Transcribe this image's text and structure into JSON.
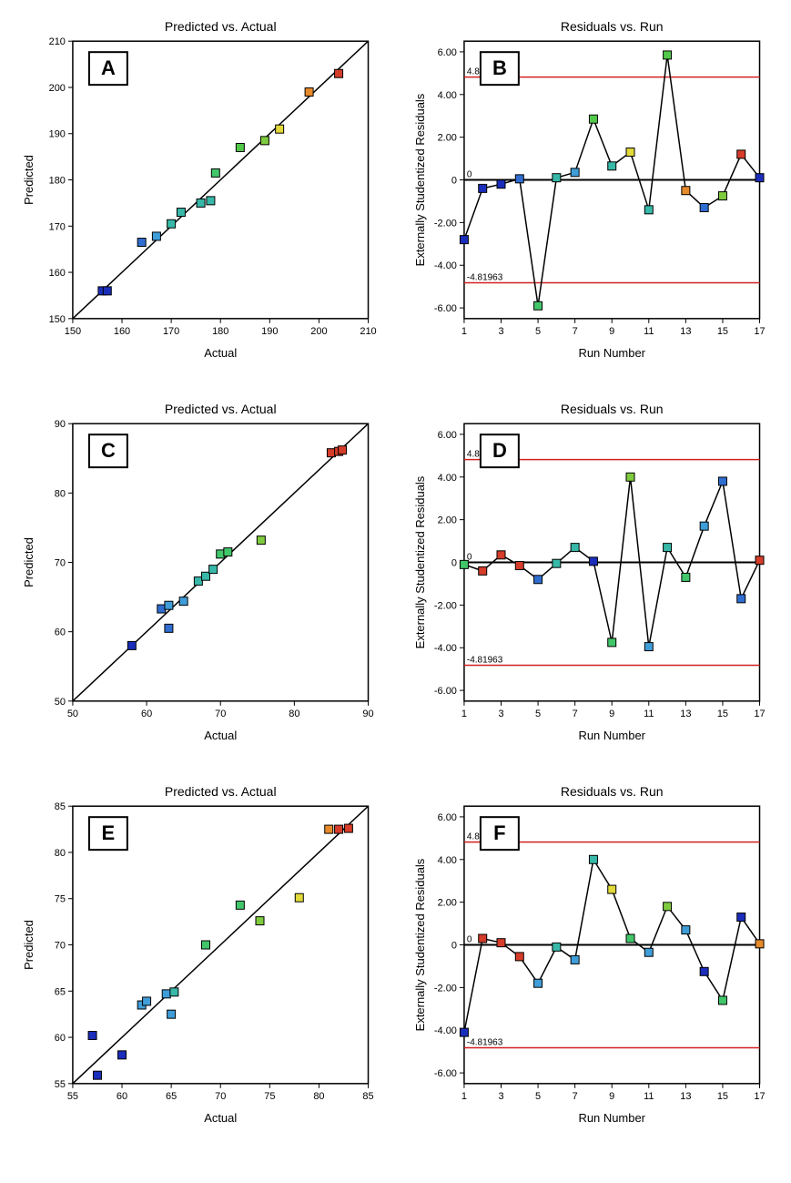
{
  "marker_size": 9,
  "marker_stroke": "#000000",
  "marker_stroke_width": 1,
  "line_color": "#000000",
  "line_width": 1.5,
  "red_line_color": "#d22020",
  "red_line_width": 1.5,
  "zero_line_color": "#000000",
  "zero_line_width": 2,
  "plot_border_color": "#000000",
  "plot_border_width": 1.5,
  "tick_color": "#000000",
  "panels": {
    "A": {
      "type": "scatter",
      "title": "Predicted vs. Actual",
      "xlabel": "Actual",
      "ylabel": "Predicted",
      "letter": "A",
      "xlim": [
        150,
        210
      ],
      "ylim": [
        150,
        210
      ],
      "xticks": [
        150,
        160,
        170,
        180,
        190,
        200,
        210
      ],
      "yticks": [
        150,
        160,
        170,
        180,
        190,
        200,
        210
      ],
      "diag_line": true,
      "points": [
        {
          "x": 156,
          "y": 156,
          "c": "#1a2dbb"
        },
        {
          "x": 157,
          "y": 156,
          "c": "#1a2dbb"
        },
        {
          "x": 164,
          "y": 166.5,
          "c": "#2f6dd0"
        },
        {
          "x": 167,
          "y": 167.8,
          "c": "#3f9dd8"
        },
        {
          "x": 170,
          "y": 170.5,
          "c": "#37b8a8"
        },
        {
          "x": 172,
          "y": 173,
          "c": "#37b8a8"
        },
        {
          "x": 176,
          "y": 175,
          "c": "#37b8a8"
        },
        {
          "x": 178,
          "y": 175.5,
          "c": "#37b8a8"
        },
        {
          "x": 179,
          "y": 181.5,
          "c": "#42c66a"
        },
        {
          "x": 184,
          "y": 187,
          "c": "#52c94a"
        },
        {
          "x": 189,
          "y": 188.5,
          "c": "#7ecb3e"
        },
        {
          "x": 192,
          "y": 191,
          "c": "#e2d93a"
        },
        {
          "x": 198,
          "y": 199,
          "c": "#e68a2a"
        },
        {
          "x": 204,
          "y": 203,
          "c": "#d53c2a"
        }
      ]
    },
    "B": {
      "type": "run",
      "title": "Residuals vs. Run",
      "xlabel": "Run Number",
      "ylabel": "Externally Studentized Residuals",
      "letter": "B",
      "xlim": [
        1,
        17
      ],
      "ylim": [
        -6.5,
        6.5
      ],
      "xticks": [
        1,
        3,
        5,
        7,
        9,
        11,
        13,
        15,
        17
      ],
      "yticks": [
        -6,
        -4,
        -2,
        0,
        2,
        4,
        6
      ],
      "ytick_labels": [
        "-6.00",
        "-4.00",
        "-2.00",
        "0",
        "2.00",
        "4.00",
        "6.00"
      ],
      "upper_limit": 4.81963,
      "lower_limit": -4.81963,
      "points": [
        {
          "x": 1,
          "y": -2.8,
          "c": "#1a2dbb"
        },
        {
          "x": 2,
          "y": -0.4,
          "c": "#1a2dbb"
        },
        {
          "x": 3,
          "y": -0.2,
          "c": "#1a2dbb"
        },
        {
          "x": 4,
          "y": 0.05,
          "c": "#2f6dd0"
        },
        {
          "x": 5,
          "y": -5.9,
          "c": "#42c66a"
        },
        {
          "x": 6,
          "y": 0.1,
          "c": "#37b8a8"
        },
        {
          "x": 7,
          "y": 0.35,
          "c": "#3f9dd8"
        },
        {
          "x": 8,
          "y": 2.85,
          "c": "#52c94a"
        },
        {
          "x": 9,
          "y": 0.65,
          "c": "#37b8a8"
        },
        {
          "x": 10,
          "y": 1.3,
          "c": "#e2d93a"
        },
        {
          "x": 11,
          "y": -1.4,
          "c": "#37b8a8"
        },
        {
          "x": 12,
          "y": 5.85,
          "c": "#52c94a"
        },
        {
          "x": 13,
          "y": -0.5,
          "c": "#e68a2a"
        },
        {
          "x": 14,
          "y": -1.3,
          "c": "#2f6dd0"
        },
        {
          "x": 15,
          "y": -0.75,
          "c": "#7ecb3e"
        },
        {
          "x": 16,
          "y": 1.2,
          "c": "#d53c2a"
        },
        {
          "x": 17,
          "y": 0.1,
          "c": "#1a2dbb"
        }
      ]
    },
    "C": {
      "type": "scatter",
      "title": "Predicted vs. Actual",
      "xlabel": "Actual",
      "ylabel": "Predicted",
      "letter": "C",
      "xlim": [
        50,
        90
      ],
      "ylim": [
        50,
        90
      ],
      "xticks": [
        50,
        60,
        70,
        80,
        90
      ],
      "yticks": [
        50,
        60,
        70,
        80,
        90
      ],
      "diag_line": true,
      "points": [
        {
          "x": 58,
          "y": 58,
          "c": "#1a2dbb"
        },
        {
          "x": 62,
          "y": 63.3,
          "c": "#2f6dd0"
        },
        {
          "x": 63,
          "y": 63.8,
          "c": "#3f9dd8"
        },
        {
          "x": 63,
          "y": 60.5,
          "c": "#2f6dd0"
        },
        {
          "x": 65,
          "y": 64.4,
          "c": "#3f9dd8"
        },
        {
          "x": 67,
          "y": 67.3,
          "c": "#37b8a8"
        },
        {
          "x": 68,
          "y": 68,
          "c": "#37b8a8"
        },
        {
          "x": 69,
          "y": 69,
          "c": "#37b8a8"
        },
        {
          "x": 70,
          "y": 71.2,
          "c": "#42c66a"
        },
        {
          "x": 71,
          "y": 71.5,
          "c": "#42c66a"
        },
        {
          "x": 75.5,
          "y": 73.2,
          "c": "#7ecb3e"
        },
        {
          "x": 85,
          "y": 85.8,
          "c": "#d53c2a"
        },
        {
          "x": 86,
          "y": 86,
          "c": "#d53c2a"
        },
        {
          "x": 86.5,
          "y": 86.2,
          "c": "#d53c2a"
        }
      ]
    },
    "D": {
      "type": "run",
      "title": "Residuals vs. Run",
      "xlabel": "Run Number",
      "ylabel": "Externally Studentized Residuals",
      "letter": "D",
      "xlim": [
        1,
        17
      ],
      "ylim": [
        -6.5,
        6.5
      ],
      "xticks": [
        1,
        3,
        5,
        7,
        9,
        11,
        13,
        15,
        17
      ],
      "yticks": [
        -6,
        -4,
        -2,
        0,
        2,
        4,
        6
      ],
      "ytick_labels": [
        "-6.00",
        "-4.00",
        "-2.00",
        "0",
        "2.00",
        "4.00",
        "6.00"
      ],
      "upper_limit": 4.81963,
      "lower_limit": -4.81963,
      "points": [
        {
          "x": 1,
          "y": -0.1,
          "c": "#42c66a"
        },
        {
          "x": 2,
          "y": -0.4,
          "c": "#d53c2a"
        },
        {
          "x": 3,
          "y": 0.35,
          "c": "#d53c2a"
        },
        {
          "x": 4,
          "y": -0.15,
          "c": "#d53c2a"
        },
        {
          "x": 5,
          "y": -0.8,
          "c": "#2f6dd0"
        },
        {
          "x": 6,
          "y": -0.05,
          "c": "#37b8a8"
        },
        {
          "x": 7,
          "y": 0.7,
          "c": "#37b8a8"
        },
        {
          "x": 8,
          "y": 0.05,
          "c": "#1a2dbb"
        },
        {
          "x": 9,
          "y": -3.75,
          "c": "#42c66a"
        },
        {
          "x": 10,
          "y": 4.0,
          "c": "#7ecb3e"
        },
        {
          "x": 11,
          "y": -3.95,
          "c": "#3f9dd8"
        },
        {
          "x": 12,
          "y": 0.7,
          "c": "#37b8a8"
        },
        {
          "x": 13,
          "y": -0.7,
          "c": "#42c66a"
        },
        {
          "x": 14,
          "y": 1.7,
          "c": "#3f9dd8"
        },
        {
          "x": 15,
          "y": 3.8,
          "c": "#2f6dd0"
        },
        {
          "x": 16,
          "y": -1.7,
          "c": "#2f6dd0"
        },
        {
          "x": 17,
          "y": 0.1,
          "c": "#d53c2a"
        }
      ]
    },
    "E": {
      "type": "scatter",
      "title": "Predicted vs. Actual",
      "xlabel": "Actual",
      "ylabel": "Predicted",
      "letter": "E",
      "xlim": [
        55,
        85
      ],
      "ylim": [
        55,
        85
      ],
      "xticks": [
        55,
        60,
        65,
        70,
        75,
        80,
        85
      ],
      "yticks": [
        55,
        60,
        65,
        70,
        75,
        80,
        85
      ],
      "diag_line": true,
      "points": [
        {
          "x": 57,
          "y": 60.2,
          "c": "#1a2dbb"
        },
        {
          "x": 57.5,
          "y": 55.9,
          "c": "#1a2dbb"
        },
        {
          "x": 60,
          "y": 58.1,
          "c": "#1a2dbb"
        },
        {
          "x": 62,
          "y": 63.5,
          "c": "#3f9dd8"
        },
        {
          "x": 62.5,
          "y": 63.9,
          "c": "#3f9dd8"
        },
        {
          "x": 64.5,
          "y": 64.7,
          "c": "#3f9dd8"
        },
        {
          "x": 65,
          "y": 62.5,
          "c": "#3f9dd8"
        },
        {
          "x": 65.3,
          "y": 64.9,
          "c": "#37b8a8"
        },
        {
          "x": 68.5,
          "y": 70,
          "c": "#42c66a"
        },
        {
          "x": 72,
          "y": 74.3,
          "c": "#42c66a"
        },
        {
          "x": 74,
          "y": 72.6,
          "c": "#7ecb3e"
        },
        {
          "x": 78,
          "y": 75.1,
          "c": "#e2d93a"
        },
        {
          "x": 81,
          "y": 82.5,
          "c": "#e68a2a"
        },
        {
          "x": 82,
          "y": 82.5,
          "c": "#d53c2a"
        },
        {
          "x": 83,
          "y": 82.6,
          "c": "#d53c2a"
        }
      ]
    },
    "F": {
      "type": "run",
      "title": "Residuals vs. Run",
      "xlabel": "Run Number",
      "ylabel": "Externally Studentized Residuals",
      "letter": "F",
      "xlim": [
        1,
        17
      ],
      "ylim": [
        -6.5,
        6.5
      ],
      "xticks": [
        1,
        3,
        5,
        7,
        9,
        11,
        13,
        15,
        17
      ],
      "yticks": [
        -6,
        -4,
        -2,
        0,
        2,
        4,
        6
      ],
      "ytick_labels": [
        "-6.00",
        "-4.00",
        "-2.00",
        "0",
        "2.00",
        "4.00",
        "6.00"
      ],
      "upper_limit": 4.81963,
      "lower_limit": -4.81963,
      "points": [
        {
          "x": 1,
          "y": -4.1,
          "c": "#1a2dbb"
        },
        {
          "x": 2,
          "y": 0.3,
          "c": "#d53c2a"
        },
        {
          "x": 3,
          "y": 0.1,
          "c": "#d53c2a"
        },
        {
          "x": 4,
          "y": -0.55,
          "c": "#d53c2a"
        },
        {
          "x": 5,
          "y": -1.8,
          "c": "#3f9dd8"
        },
        {
          "x": 6,
          "y": -0.1,
          "c": "#37b8a8"
        },
        {
          "x": 7,
          "y": -0.7,
          "c": "#3f9dd8"
        },
        {
          "x": 8,
          "y": 4.0,
          "c": "#37b8a8"
        },
        {
          "x": 9,
          "y": 2.6,
          "c": "#e2d93a"
        },
        {
          "x": 10,
          "y": 0.3,
          "c": "#42c66a"
        },
        {
          "x": 11,
          "y": -0.35,
          "c": "#3f9dd8"
        },
        {
          "x": 12,
          "y": 1.8,
          "c": "#7ecb3e"
        },
        {
          "x": 13,
          "y": 0.7,
          "c": "#3f9dd8"
        },
        {
          "x": 14,
          "y": -1.25,
          "c": "#1a2dbb"
        },
        {
          "x": 15,
          "y": -2.6,
          "c": "#42c66a"
        },
        {
          "x": 16,
          "y": 1.3,
          "c": "#1a2dbb"
        },
        {
          "x": 17,
          "y": 0.05,
          "c": "#e68a2a"
        }
      ]
    }
  },
  "panel_order": [
    "A",
    "B",
    "C",
    "D",
    "E",
    "F"
  ]
}
